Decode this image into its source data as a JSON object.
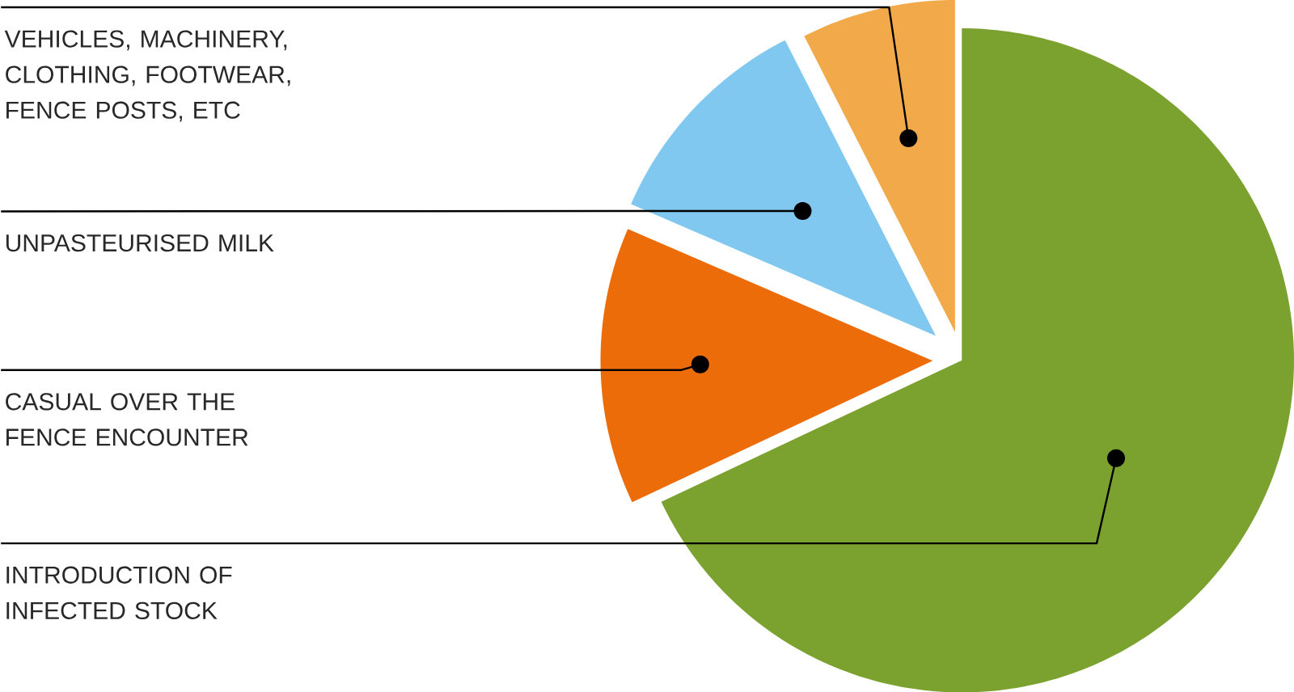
{
  "chart_data": {
    "type": "pie",
    "categories": [
      "INTRODUCTION OF INFECTED STOCK",
      "CASUAL OVER THE FENCE ENCOUNTER",
      "UNPASTEURISED MILK",
      "VEHICLES, MACHINERY, CLOTHING, FOOTWEAR, FENCE POSTS, ETC"
    ],
    "values": [
      68,
      13.5,
      11,
      7.5
    ],
    "colors": [
      "#7ba22f",
      "#ec6c0a",
      "#80c8f0",
      "#f2a94a"
    ]
  }
}
